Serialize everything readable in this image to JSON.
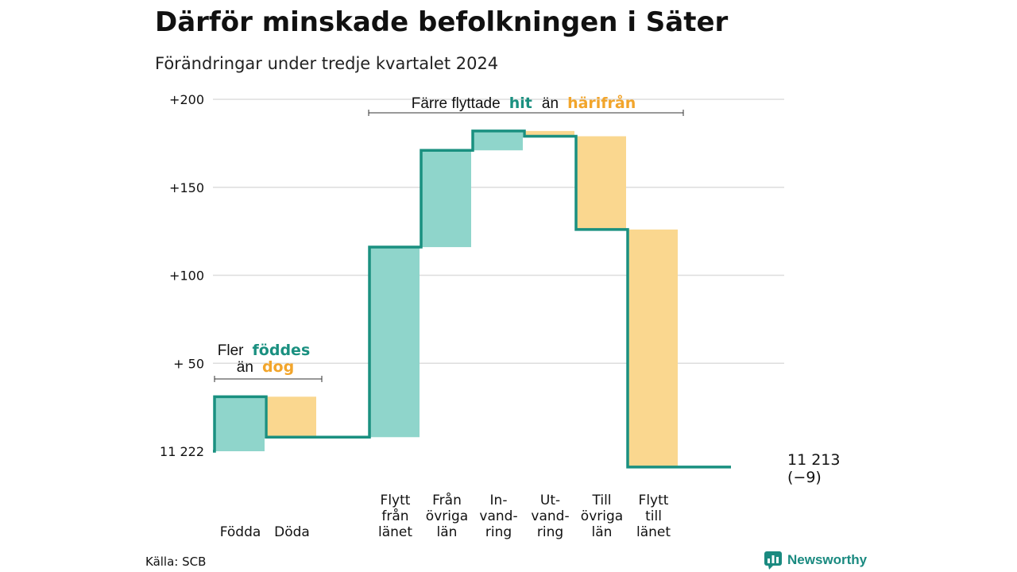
{
  "header": {
    "title": "Därför minskade befolkningen i Säter",
    "subtitle": "Förändringar under tredje kvartalet 2024"
  },
  "footer": {
    "source": "Källa: SCB",
    "brand": "Newsworthy"
  },
  "annotations": {
    "natural": {
      "prefix": "Fler",
      "highlight1": "föddes",
      "mid": "än",
      "highlight2": "dog"
    },
    "migration": {
      "prefix": "Färre flyttade",
      "highlight1": "hit",
      "mid": "än",
      "highlight2": "härifrån"
    }
  },
  "end_label": {
    "value": "11 213",
    "change": "(−9)"
  },
  "colors": {
    "increase_fill": "#8fd5cb",
    "decrease_fill": "#fad78f",
    "line": "#1a9080",
    "increase_text": "#1a9080",
    "decrease_text": "#f2a52b",
    "grid": "#dddddd",
    "axis_text": "#111111"
  },
  "chart_data": {
    "type": "waterfall",
    "baseline": 11222,
    "end_value": 11213,
    "ylim": [
      0,
      200
    ],
    "yticks": [
      {
        "value": 0,
        "label": "11 222"
      },
      {
        "value": 50,
        "label": "+ 50"
      },
      {
        "value": 100,
        "label": "+100"
      },
      {
        "value": 150,
        "label": "+150"
      },
      {
        "value": 200,
        "label": "+200"
      }
    ],
    "steps": [
      {
        "label": [
          "Födda"
        ],
        "from": 0,
        "to": 31,
        "kind": "increase"
      },
      {
        "label": [
          "Döda"
        ],
        "from": 31,
        "to": 8,
        "kind": "decrease"
      },
      {
        "label": [],
        "from": 8,
        "to": 8,
        "kind": "gap"
      },
      {
        "label": [
          "Flytt",
          "från",
          "länet"
        ],
        "from": 8,
        "to": 116,
        "kind": "increase"
      },
      {
        "label": [
          "Från",
          "övriga",
          "län"
        ],
        "from": 116,
        "to": 171,
        "kind": "increase"
      },
      {
        "label": [
          "In-",
          "vand-",
          "ring"
        ],
        "from": 171,
        "to": 182,
        "kind": "increase"
      },
      {
        "label": [
          "Ut-",
          "vand-",
          "ring"
        ],
        "from": 182,
        "to": 179,
        "kind": "decrease"
      },
      {
        "label": [
          "Till",
          "övriga",
          "län"
        ],
        "from": 179,
        "to": 126,
        "kind": "decrease"
      },
      {
        "label": [
          "Flytt",
          "till",
          "länet"
        ],
        "from": 126,
        "to": -9,
        "kind": "decrease"
      },
      {
        "label": [],
        "from": -9,
        "to": -9,
        "kind": "gap"
      }
    ],
    "grid": true,
    "legend": "none"
  }
}
